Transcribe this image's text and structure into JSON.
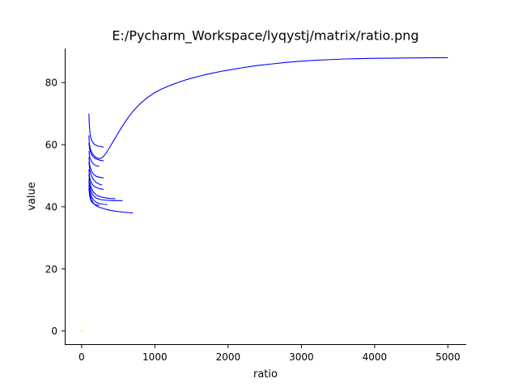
{
  "chart_data": {
    "type": "line",
    "title": "E:/Pycharm_Workspace/lyqystj/matrix/ratio.png",
    "xlabel": "ratio",
    "ylabel": "value",
    "xlim": [
      -230,
      5250
    ],
    "ylim": [
      -4.5,
      91.5
    ],
    "xticks": [
      0,
      1000,
      2000,
      3000,
      4000,
      5000
    ],
    "yticks": [
      0,
      20,
      40,
      60,
      80
    ],
    "line_color": "#0000ff",
    "marker_color": "#ffff00",
    "grid": false,
    "spines": "left-bottom",
    "series": [
      {
        "x": [
          100,
          105,
          115,
          130,
          150,
          180,
          220,
          260,
          300
        ],
        "y": [
          70.0,
          66.5,
          63.5,
          61.8,
          60.8,
          60.0,
          59.6,
          59.4,
          59.2
        ]
      },
      {
        "x": [
          100,
          105,
          120,
          150,
          190,
          240,
          280,
          320,
          360,
          400,
          450,
          500,
          550,
          600,
          650,
          700,
          750,
          800,
          900,
          1000,
          1100,
          1200,
          1300,
          1400,
          1500,
          1600,
          1700,
          1800,
          1900,
          2000,
          2200,
          2400,
          2600,
          2800,
          3000,
          3200,
          3400,
          3600,
          3800,
          4000,
          4200,
          4400,
          4600,
          4800,
          5000
        ],
        "y": [
          63.0,
          60.5,
          58.5,
          57.0,
          56.0,
          55.5,
          55.8,
          56.8,
          58.2,
          59.8,
          61.8,
          63.8,
          65.7,
          67.5,
          69.2,
          70.7,
          72.0,
          73.2,
          75.2,
          76.8,
          78.0,
          79.0,
          79.9,
          80.7,
          81.4,
          82.0,
          82.6,
          83.1,
          83.6,
          84.0,
          84.8,
          85.5,
          86.0,
          86.5,
          86.9,
          87.2,
          87.4,
          87.6,
          87.7,
          87.8,
          87.85,
          87.9,
          87.95,
          88.0,
          88.0
        ]
      },
      {
        "x": [
          100,
          110,
          130,
          160,
          200,
          250,
          300
        ],
        "y": [
          60.5,
          58.5,
          57.0,
          56.0,
          55.4,
          55.0,
          54.8
        ]
      },
      {
        "x": [
          100,
          110,
          130,
          160,
          200,
          240
        ],
        "y": [
          58.0,
          56.0,
          54.8,
          53.8,
          53.2,
          53.0
        ]
      },
      {
        "x": [
          100,
          110,
          130,
          160,
          200,
          250,
          300
        ],
        "y": [
          56.0,
          53.5,
          51.8,
          50.5,
          49.8,
          49.5,
          49.3
        ]
      },
      {
        "x": [
          100,
          110,
          130,
          160,
          200,
          250,
          280
        ],
        "y": [
          54.5,
          52.0,
          50.2,
          48.8,
          47.8,
          47.2,
          47.0
        ]
      },
      {
        "x": [
          100,
          110,
          130,
          160,
          200,
          250,
          300
        ],
        "y": [
          52.0,
          49.5,
          47.8,
          46.8,
          46.2,
          45.8,
          45.6
        ]
      },
      {
        "x": [
          100,
          110,
          130,
          160,
          200,
          260,
          320,
          380,
          460
        ],
        "y": [
          50.5,
          48.0,
          46.2,
          44.8,
          43.8,
          43.2,
          42.9,
          42.7,
          42.6
        ]
      },
      {
        "x": [
          100,
          110,
          130,
          160,
          200,
          260,
          340,
          420,
          500,
          560
        ],
        "y": [
          49.0,
          46.8,
          45.0,
          43.6,
          42.8,
          42.3,
          42.1,
          42.0,
          42.0,
          42.0
        ]
      },
      {
        "x": [
          100,
          110,
          130,
          160,
          200,
          250,
          300,
          350
        ],
        "y": [
          48.0,
          45.5,
          43.5,
          42.2,
          41.4,
          41.0,
          40.8,
          40.7
        ]
      },
      {
        "x": [
          100,
          110,
          130,
          160,
          200,
          260,
          330,
          400,
          480,
          560,
          640,
          700
        ],
        "y": [
          47.0,
          44.5,
          42.5,
          41.2,
          40.3,
          39.7,
          39.2,
          38.8,
          38.5,
          38.3,
          38.1,
          38.0
        ]
      },
      {
        "x": [
          100,
          110,
          130,
          160,
          200,
          240
        ],
        "y": [
          46.0,
          43.5,
          41.8,
          41.0,
          40.6,
          40.5
        ]
      }
    ],
    "markers": [
      {
        "x": 0,
        "y": 0
      }
    ]
  }
}
